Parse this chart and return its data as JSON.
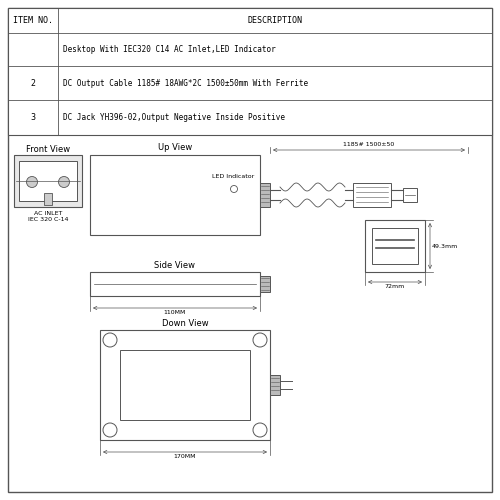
{
  "background_color": "#ffffff",
  "line_color": "#555555",
  "table": {
    "rows": [
      [
        "",
        "Desktop With IEC320 C14 AC Inlet,LED Indicator"
      ],
      [
        "2",
        "DC Output Cable 1185# 18AWG*2C 1500±50mm With Ferrite"
      ],
      [
        "3",
        "DC Jack YH396-02,Output Negative Inside Positive"
      ]
    ]
  },
  "labels": {
    "front_view": "Front View",
    "up_view": "Up View",
    "side_view": "Side View",
    "down_view": "Down View",
    "ac_inlet": "AC INLET\nIEC 320 C-14",
    "led_indicator": "LED Indicator",
    "cable_length": "1185# 1500±50",
    "dim_110mm": "110MM",
    "dim_170mm": "170MM",
    "dim_49mm": "49.3mm",
    "dim_72mm": "72mm"
  }
}
